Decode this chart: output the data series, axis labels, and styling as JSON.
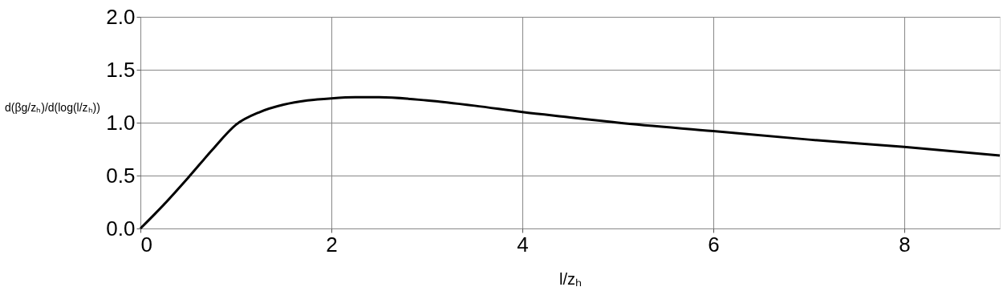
{
  "chart_data": {
    "type": "line",
    "xlabel": "l/zₕ",
    "ylabel": "d(βg/zₕ)/d(log(l/zₕ))",
    "x": [
      0,
      0.25,
      0.5,
      0.75,
      1,
      1.25,
      1.5,
      1.75,
      2,
      2.25,
      2.5,
      3,
      3.5,
      4,
      4.5,
      5,
      6,
      7,
      8,
      9
    ],
    "series": [
      {
        "color": "#000000",
        "values": [
          0,
          0.23,
          0.48,
          0.74,
          0.98,
          1.1,
          1.17,
          1.21,
          1.23,
          1.24,
          1.24,
          1.21,
          1.16,
          1.1,
          1.05,
          1.0,
          0.92,
          0.84,
          0.77,
          0.69
        ]
      }
    ],
    "xlim": [
      0,
      9
    ],
    "xticks": [
      0,
      2,
      4,
      6,
      8
    ],
    "ylim": [
      0,
      2
    ],
    "yticks": [
      {
        "value": 0,
        "label": "0.0"
      },
      0.5,
      {
        "value": 1,
        "label": "1.0"
      },
      1.5,
      {
        "value": 2,
        "label": "2.0"
      }
    ],
    "grid": true,
    "line_style": "solid",
    "marker": "none"
  }
}
